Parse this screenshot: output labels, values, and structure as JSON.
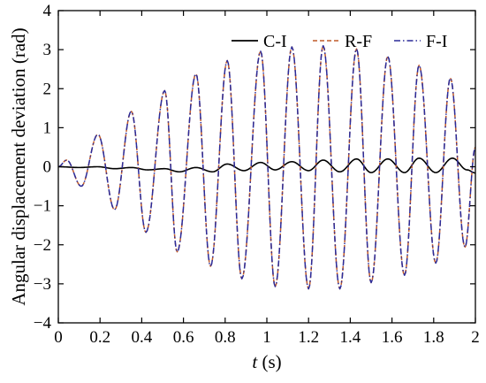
{
  "chart_data": {
    "type": "line",
    "title": "",
    "xlabel": "t (s)",
    "xlabel_italic": "t",
    "xlabel_rest": " (s)",
    "ylabel": "Angular displacement deviation (rad)",
    "xlim": [
      0,
      2
    ],
    "ylim": [
      -4,
      4
    ],
    "xticks": [
      0,
      0.2,
      0.4,
      0.6,
      0.8,
      1,
      1.2,
      1.4,
      1.6,
      1.8,
      2
    ],
    "xtick_labels": [
      "0",
      "0.2",
      "0.4",
      "0.6",
      "0.8",
      "1",
      "1.2",
      "1.4",
      "1.6",
      "1.8",
      "2"
    ],
    "yticks": [
      -4,
      -3,
      -2,
      -1,
      0,
      1,
      2,
      3,
      4
    ],
    "ytick_labels": [
      "−4",
      "−3",
      "−2",
      "−1",
      "0",
      "1",
      "2",
      "3",
      "4"
    ],
    "grid": false,
    "legend_position": "top-right",
    "series": [
      {
        "name": "C-I",
        "color": "#000000",
        "style": "solid",
        "extrema": [
          [
            0,
            0
          ],
          [
            0.1,
            -0.02
          ],
          [
            0.19,
            0.0
          ],
          [
            0.27,
            -0.05
          ],
          [
            0.35,
            -0.02
          ],
          [
            0.43,
            -0.08
          ],
          [
            0.51,
            -0.05
          ],
          [
            0.58,
            -0.13
          ],
          [
            0.66,
            -0.02
          ],
          [
            0.74,
            -0.13
          ],
          [
            0.81,
            0.07
          ],
          [
            0.89,
            -0.1
          ],
          [
            0.97,
            0.11
          ],
          [
            1.04,
            -0.08
          ],
          [
            1.12,
            0.13
          ],
          [
            1.2,
            -0.1
          ],
          [
            1.27,
            0.17
          ],
          [
            1.35,
            -0.13
          ],
          [
            1.43,
            0.2
          ],
          [
            1.5,
            -0.15
          ],
          [
            1.58,
            0.2
          ],
          [
            1.66,
            -0.15
          ],
          [
            1.73,
            0.22
          ],
          [
            1.81,
            -0.15
          ],
          [
            1.89,
            0.22
          ],
          [
            1.96,
            -0.08
          ],
          [
            2.0,
            -0.16
          ]
        ]
      },
      {
        "name": "R-F",
        "color": "#c05a28",
        "style": "dashed",
        "extrema": [
          [
            0,
            0
          ],
          [
            0.04,
            0.17
          ],
          [
            0.11,
            -0.5
          ],
          [
            0.19,
            0.83
          ],
          [
            0.27,
            -1.1
          ],
          [
            0.35,
            1.42
          ],
          [
            0.42,
            -1.68
          ],
          [
            0.51,
            1.95
          ],
          [
            0.57,
            -2.18
          ],
          [
            0.66,
            2.38
          ],
          [
            0.73,
            -2.55
          ],
          [
            0.81,
            2.72
          ],
          [
            0.88,
            -2.87
          ],
          [
            0.97,
            2.96
          ],
          [
            1.04,
            -3.07
          ],
          [
            1.12,
            3.07
          ],
          [
            1.2,
            -3.13
          ],
          [
            1.27,
            3.1
          ],
          [
            1.35,
            -3.13
          ],
          [
            1.43,
            3.02
          ],
          [
            1.5,
            -2.97
          ],
          [
            1.58,
            2.83
          ],
          [
            1.66,
            -2.78
          ],
          [
            1.73,
            2.6
          ],
          [
            1.81,
            -2.47
          ],
          [
            1.88,
            2.27
          ],
          [
            1.95,
            -2.06
          ],
          [
            2.0,
            0.5
          ]
        ]
      },
      {
        "name": "F-I",
        "color": "#2b2b99",
        "style": "dashdot",
        "extrema": [
          [
            0,
            0
          ],
          [
            0.04,
            0.17
          ],
          [
            0.11,
            -0.5
          ],
          [
            0.19,
            0.83
          ],
          [
            0.27,
            -1.1
          ],
          [
            0.35,
            1.42
          ],
          [
            0.42,
            -1.68
          ],
          [
            0.51,
            1.95
          ],
          [
            0.57,
            -2.18
          ],
          [
            0.66,
            2.38
          ],
          [
            0.73,
            -2.55
          ],
          [
            0.81,
            2.72
          ],
          [
            0.88,
            -2.87
          ],
          [
            0.97,
            2.96
          ],
          [
            1.04,
            -3.07
          ],
          [
            1.12,
            3.07
          ],
          [
            1.2,
            -3.13
          ],
          [
            1.27,
            3.1
          ],
          [
            1.35,
            -3.13
          ],
          [
            1.43,
            3.02
          ],
          [
            1.5,
            -2.97
          ],
          [
            1.58,
            2.83
          ],
          [
            1.66,
            -2.78
          ],
          [
            1.73,
            2.6
          ],
          [
            1.81,
            -2.47
          ],
          [
            1.88,
            2.27
          ],
          [
            1.95,
            -2.06
          ],
          [
            2.0,
            0.5
          ]
        ]
      }
    ]
  }
}
